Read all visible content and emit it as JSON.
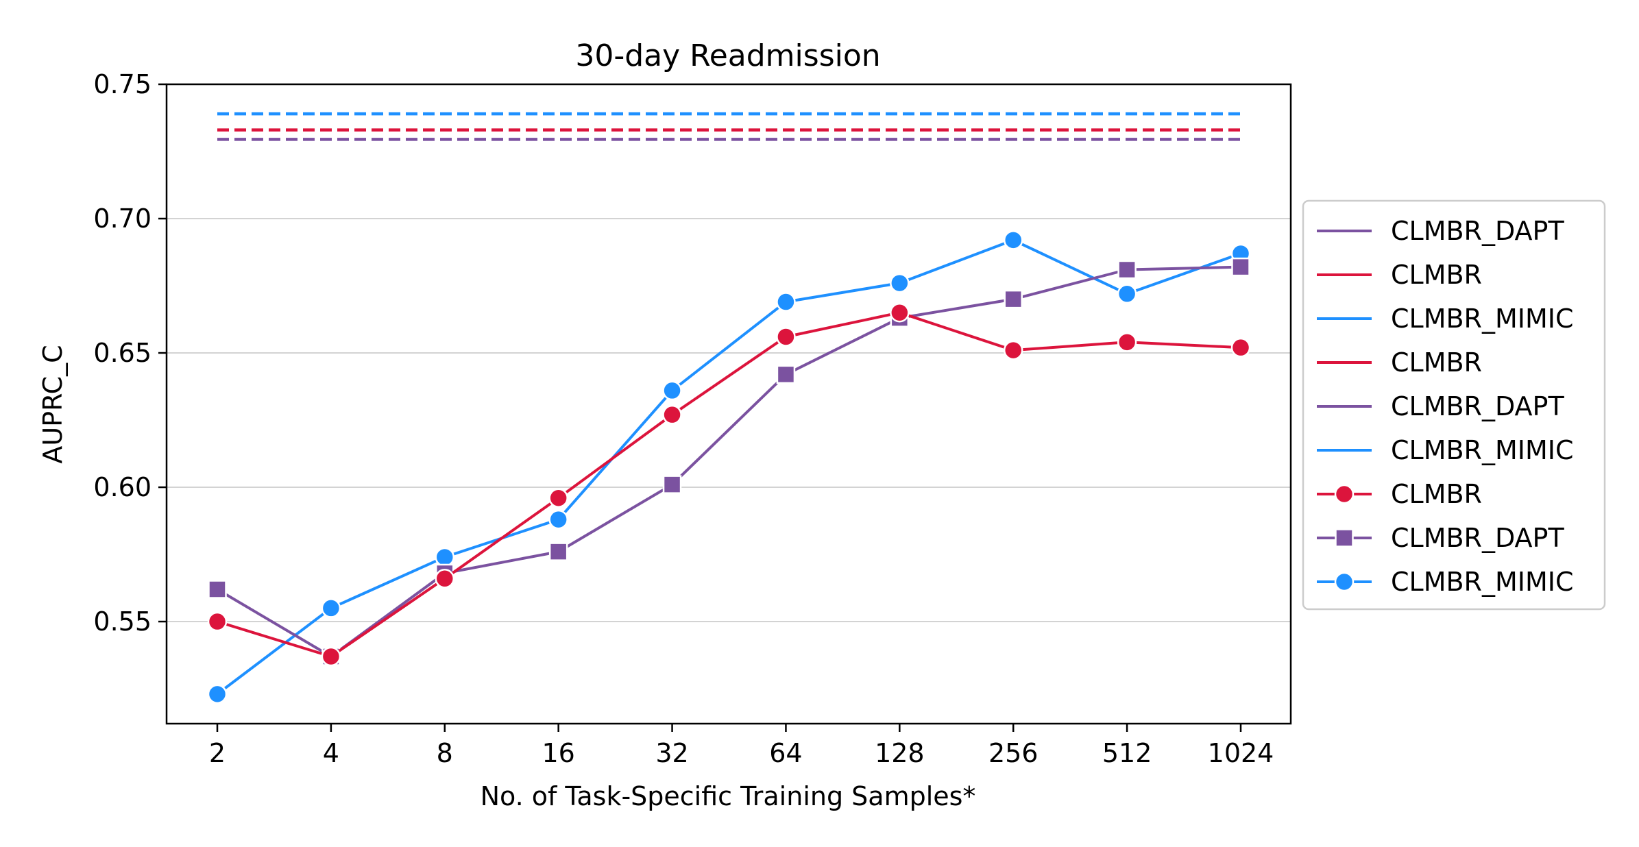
{
  "chart_data": {
    "type": "line",
    "title": "30-day Readmission",
    "xlabel": "No. of Task-Specific Training Samples*",
    "ylabel": "AUPRC_C",
    "x_scale": "log2",
    "categories": [
      "2",
      "4",
      "8",
      "16",
      "32",
      "64",
      "128",
      "256",
      "512",
      "1024"
    ],
    "x": [
      2,
      4,
      8,
      16,
      32,
      64,
      128,
      256,
      512,
      1024
    ],
    "ylim": [
      0.512,
      0.75
    ],
    "yticks": [
      0.55,
      0.6,
      0.65,
      0.7,
      0.75
    ],
    "ytick_labels": [
      "0.55",
      "0.60",
      "0.65",
      "0.70",
      "0.75"
    ],
    "grid": "horizontal",
    "legend_position": "right-outside",
    "series": [
      {
        "name": "CLMBR_DAPT",
        "color": "#7b52a0",
        "style": "dashed",
        "marker": "none",
        "values": [
          0.7295,
          0.7295,
          0.7295,
          0.7295,
          0.7295,
          0.7295,
          0.7295,
          0.7295,
          0.7295,
          0.7295
        ]
      },
      {
        "name": "CLMBR",
        "color": "#dc143c",
        "style": "dashed",
        "marker": "none",
        "values": [
          0.733,
          0.733,
          0.733,
          0.733,
          0.733,
          0.733,
          0.733,
          0.733,
          0.733,
          0.733
        ]
      },
      {
        "name": "CLMBR_MIMIC",
        "color": "#1e90ff",
        "style": "dashed",
        "marker": "none",
        "values": [
          0.739,
          0.739,
          0.739,
          0.739,
          0.739,
          0.739,
          0.739,
          0.739,
          0.739,
          0.739
        ]
      },
      {
        "name": "CLMBR",
        "color": "#dc143c",
        "style": "solid",
        "marker": "circle",
        "values": [
          0.55,
          0.537,
          0.566,
          0.596,
          0.627,
          0.656,
          0.665,
          0.651,
          0.654,
          0.652
        ]
      },
      {
        "name": "CLMBR_DAPT",
        "color": "#7b52a0",
        "style": "solid",
        "marker": "square",
        "values": [
          0.562,
          0.537,
          0.568,
          0.576,
          0.601,
          0.642,
          0.663,
          0.67,
          0.681,
          0.682
        ]
      },
      {
        "name": "CLMBR_MIMIC",
        "color": "#1e90ff",
        "style": "solid",
        "marker": "circle",
        "values": [
          0.523,
          0.555,
          0.574,
          0.588,
          0.636,
          0.669,
          0.676,
          0.692,
          0.672,
          0.687
        ]
      }
    ],
    "legend": [
      {
        "label": "CLMBR_DAPT",
        "color": "#7b52a0",
        "marker": "none"
      },
      {
        "label": "CLMBR",
        "color": "#dc143c",
        "marker": "none"
      },
      {
        "label": "CLMBR_MIMIC",
        "color": "#1e90ff",
        "marker": "none"
      },
      {
        "label": "CLMBR",
        "color": "#dc143c",
        "marker": "none"
      },
      {
        "label": "CLMBR_DAPT",
        "color": "#7b52a0",
        "marker": "none"
      },
      {
        "label": "CLMBR_MIMIC",
        "color": "#1e90ff",
        "marker": "none"
      },
      {
        "label": "CLMBR",
        "color": "#dc143c",
        "marker": "circle"
      },
      {
        "label": "CLMBR_DAPT",
        "color": "#7b52a0",
        "marker": "square"
      },
      {
        "label": "CLMBR_MIMIC",
        "color": "#1e90ff",
        "marker": "circle"
      }
    ]
  }
}
